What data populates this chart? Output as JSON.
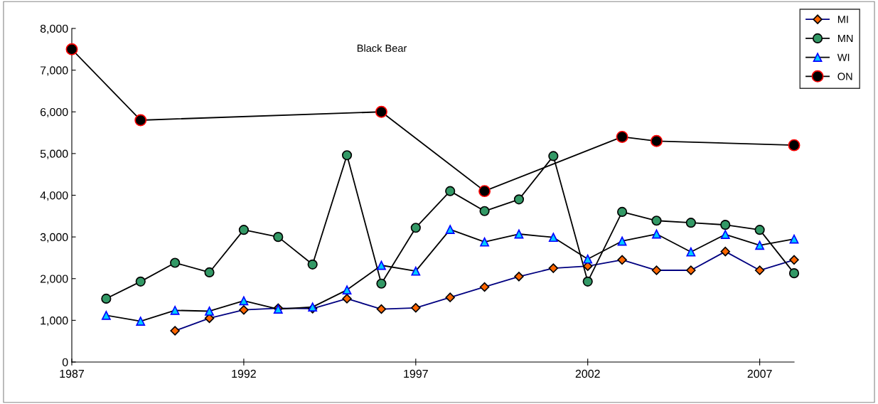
{
  "chart_data": {
    "type": "line",
    "title": "Black Bear",
    "xlim": [
      1987,
      2008
    ],
    "xticks": [
      1987,
      1992,
      1997,
      2002,
      2007
    ],
    "ylim": [
      0,
      8000
    ],
    "yticks": [
      0,
      {
        "value": 1000,
        "label": "1,000"
      },
      {
        "value": 2000,
        "label": "2,000"
      },
      {
        "value": 3000,
        "label": "3,000"
      },
      {
        "value": 4000,
        "label": "4,000"
      },
      {
        "value": 5000,
        "label": "5,000"
      },
      {
        "value": 6000,
        "label": "6,000"
      },
      {
        "value": 7000,
        "label": "7,000"
      },
      {
        "value": 8000,
        "label": "8,000"
      }
    ],
    "grid": false,
    "legend": "top right",
    "line_style": "solid",
    "series": [
      {
        "name": "MI",
        "color": "#000080",
        "marker": "diamond",
        "x": [
          1990,
          1991,
          1992,
          1993,
          1994,
          1995,
          1996,
          1997,
          1998,
          1999,
          2000,
          2001,
          2002,
          2003,
          2004,
          2005,
          2006,
          2007,
          2008
        ],
        "values": [
          750,
          1050,
          1250,
          1290,
          1280,
          1520,
          1270,
          1300,
          1550,
          1800,
          2050,
          2250,
          2300,
          2450,
          2200,
          2200,
          2650,
          2200,
          2450
        ]
      },
      {
        "name": "MN",
        "color": "#000000",
        "marker": "circle",
        "x": [
          1988,
          1989,
          1990,
          1991,
          1992,
          1993,
          1994,
          1995,
          1996,
          1997,
          1998,
          1999,
          2000,
          2001,
          2002,
          2003,
          2004,
          2005,
          2006,
          2007,
          2008
        ],
        "values": [
          1520,
          1930,
          2380,
          2150,
          3170,
          3000,
          2340,
          4960,
          1880,
          3220,
          4100,
          3620,
          3900,
          4940,
          1930,
          3600,
          3390,
          3340,
          3290,
          3170,
          2130
        ]
      },
      {
        "name": "WI",
        "color": "#000000",
        "marker": "triangle",
        "x": [
          1988,
          1989,
          1990,
          1991,
          1992,
          1993,
          1994,
          1995,
          1996,
          1997,
          1998,
          1999,
          2000,
          2001,
          2002,
          2003,
          2004,
          2005,
          2006,
          2007,
          2008
        ],
        "values": [
          1120,
          980,
          1240,
          1220,
          1470,
          1270,
          1320,
          1730,
          2320,
          2180,
          3180,
          2880,
          3070,
          2990,
          2470,
          2900,
          3070,
          2640,
          3060,
          2800,
          2950
        ]
      },
      {
        "name": "ON",
        "color": "#000000",
        "marker": "circle",
        "x": [
          1987,
          1989,
          1996,
          1999,
          2003,
          2004,
          2008
        ],
        "values": [
          7500,
          5800,
          6000,
          4100,
          5400,
          5300,
          5200
        ]
      }
    ]
  }
}
